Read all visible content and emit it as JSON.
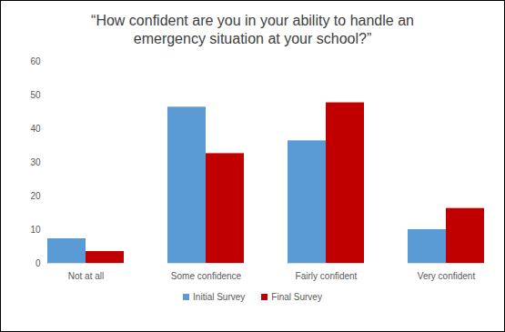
{
  "chart_data": {
    "type": "bar",
    "title": "“How confident are you in your ability to handle an emergency situation at your school?”",
    "categories": [
      "Not at all",
      "Some confidence",
      "Fairly confident",
      "Very confident"
    ],
    "series": [
      {
        "name": "Initial Survey",
        "color": "#5b9bd5",
        "values": [
          7.3,
          46.4,
          36.4,
          10.0
        ]
      },
      {
        "name": "Final Survey",
        "color": "#c00000",
        "values": [
          3.5,
          32.6,
          47.7,
          16.3
        ]
      }
    ],
    "ylim": [
      0,
      60
    ],
    "yticks": [
      0,
      10,
      20,
      30,
      40,
      50,
      60
    ],
    "grid": false,
    "legend": "bottom"
  }
}
